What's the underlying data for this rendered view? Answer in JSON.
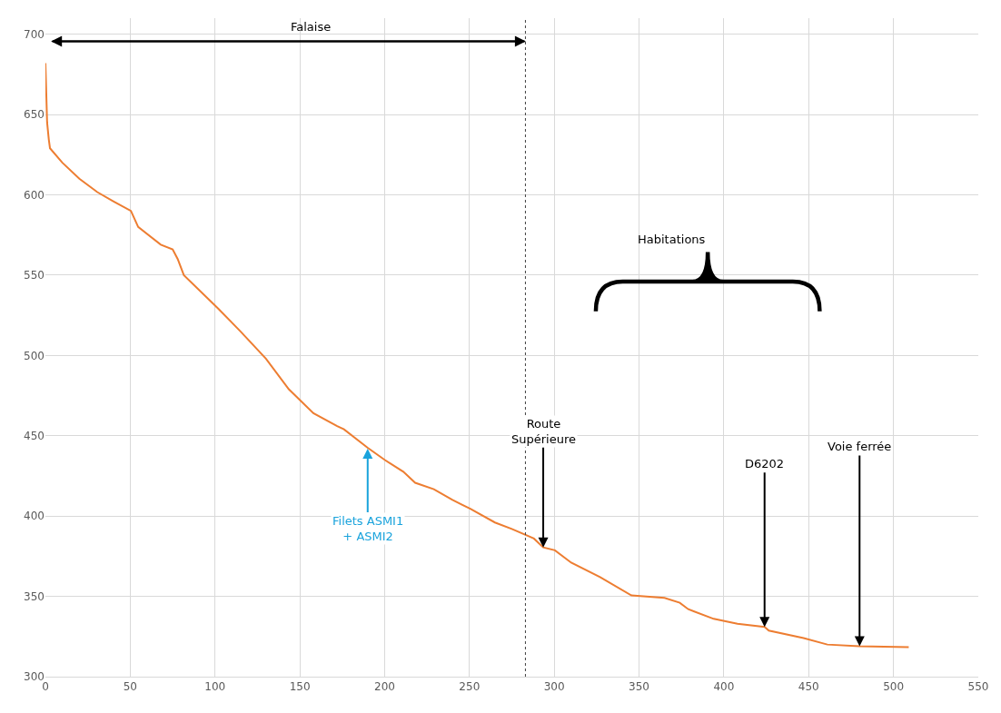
{
  "chart_data": {
    "type": "line",
    "x": [
      0,
      1,
      2,
      2.7,
      10,
      20,
      30.6,
      40,
      50.4,
      54.7,
      68,
      75,
      78,
      81.6,
      102,
      115,
      130,
      143.5,
      158,
      172,
      176,
      190,
      200,
      211,
      218,
      229,
      240,
      250.5,
      265,
      275,
      288,
      293.5,
      300.4,
      310,
      327,
      345.5,
      365,
      374,
      379,
      394,
      408,
      424,
      426.5,
      447,
      461,
      480,
      509
    ],
    "series": [
      {
        "color": "#ed7d31",
        "values": [
          682,
          645,
          634.5,
          629,
          620,
          610,
          601.7,
          596,
          590,
          580,
          569,
          566,
          560,
          550,
          529,
          515,
          498,
          479,
          464,
          456,
          454,
          442.5,
          435,
          427.6,
          420.7,
          416.7,
          410,
          404.6,
          396,
          392,
          386,
          380.5,
          378.7,
          371,
          362,
          350.6,
          349,
          346,
          342,
          336,
          333,
          331,
          328.7,
          324,
          320,
          319,
          318.4
        ]
      }
    ],
    "xlim": [
      0,
      550
    ],
    "xticks": [
      0,
      50,
      100,
      150,
      200,
      250,
      300,
      350,
      400,
      450,
      500,
      550
    ],
    "ylim": [
      300,
      710
    ],
    "yticks": [
      300,
      350,
      400,
      450,
      500,
      550,
      600,
      650,
      700
    ],
    "grid": true,
    "marker": "none",
    "line_style": "solid",
    "annotations": [
      {
        "text": "Filets ASMI1\n+ ASMI2",
        "x": 190,
        "y": 442
      },
      {
        "text": "Route\nSupérieure",
        "x": 293.5,
        "y": 380.5
      },
      {
        "text": "D6202",
        "x": 424,
        "y": 331
      },
      {
        "text": "Voie ferrée",
        "x": 480,
        "y": 319
      },
      "Falaise",
      "Habitations"
    ],
    "ref_lines": [
      {
        "axis": "x",
        "value": 283,
        "color": "#404040",
        "line_style": "dotted"
      }
    ]
  }
}
